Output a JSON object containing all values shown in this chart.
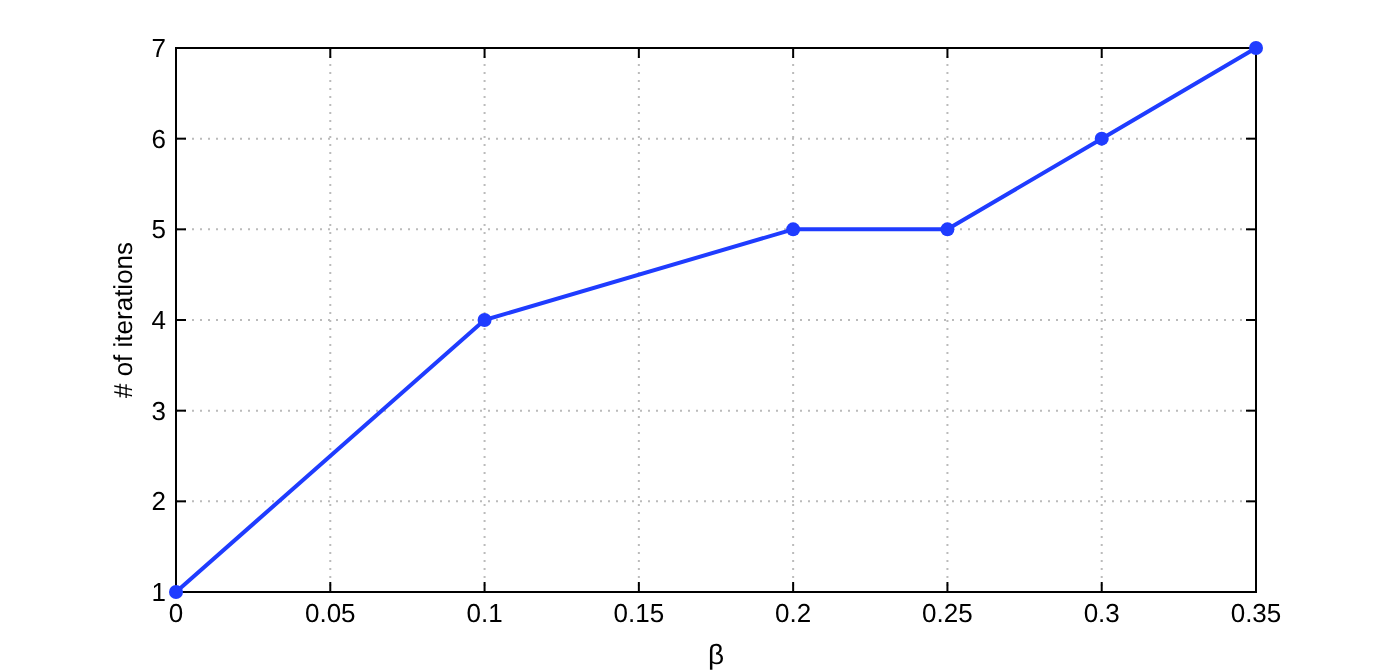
{
  "chart_data": {
    "type": "line",
    "xlabel": "β",
    "ylabel": "# of iterations",
    "x": [
      0,
      0.1,
      0.2,
      0.25,
      0.3,
      0.35
    ],
    "series": [
      {
        "color": "#1f3cff",
        "values": [
          1,
          4,
          5,
          5,
          6,
          7
        ]
      }
    ],
    "xlim": [
      0,
      0.35
    ],
    "xticks": [
      0,
      0.05,
      0.1,
      0.15,
      0.2,
      0.25,
      0.3,
      0.35
    ],
    "ylim": [
      1,
      7
    ],
    "yticks": [
      1,
      2,
      3,
      4,
      5,
      6,
      7
    ],
    "grid": true,
    "marker": "circle",
    "line_style": "solid"
  }
}
